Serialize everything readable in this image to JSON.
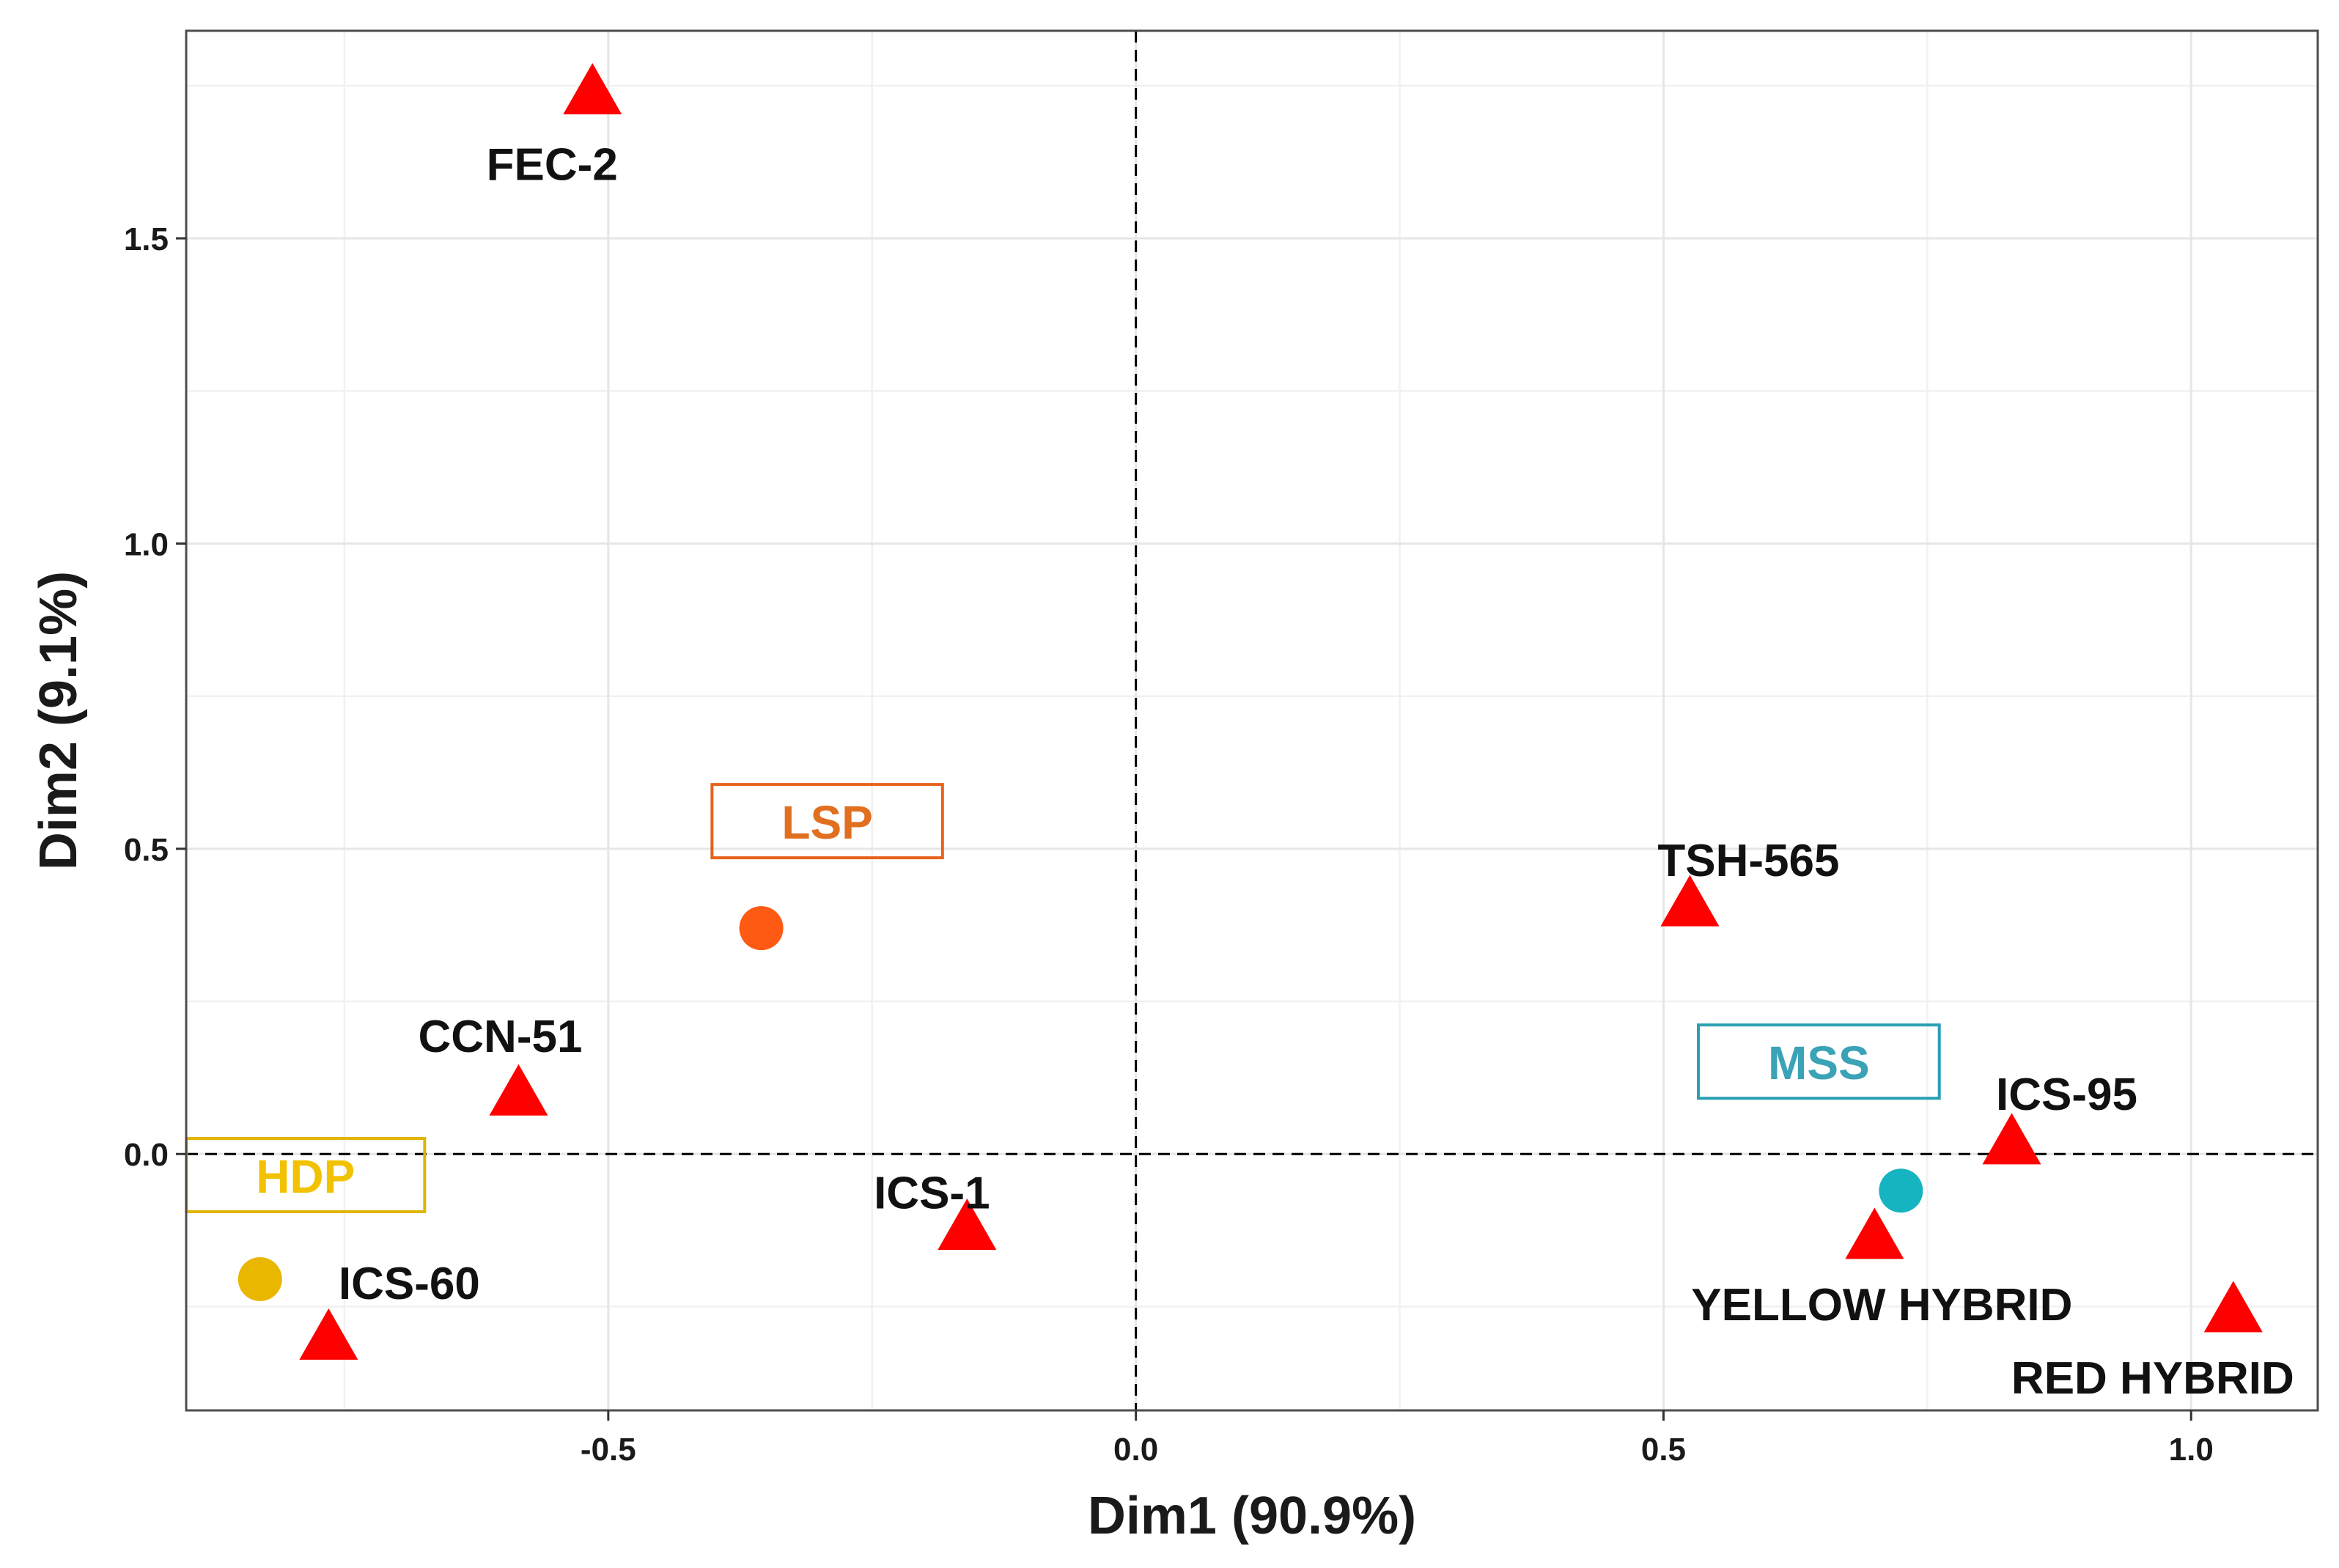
{
  "chart_data": {
    "type": "scatter",
    "title": "",
    "xlabel": "Dim1 (90.9%)",
    "ylabel": "Dim2 (9.1%)",
    "xlim": [
      -0.9,
      1.12
    ],
    "ylim": [
      -0.42,
      1.84
    ],
    "xticks": [
      -0.5,
      0.0,
      0.5,
      1.0
    ],
    "xtick_labels": [
      "-0.5",
      "0.0",
      "0.5",
      "1.0"
    ],
    "yticks": [
      0.0,
      0.5,
      1.0,
      1.5
    ],
    "ytick_labels": [
      "0.0",
      "0.5",
      "1.0",
      "1.5"
    ],
    "grid": true,
    "reference_lines": {
      "x": 0,
      "y": 0,
      "style": "dashed"
    },
    "marker_color": "#ff0000",
    "label_color": "#111111",
    "points": [
      {
        "name": "FEC-2",
        "x": -0.515,
        "y": 1.735
      },
      {
        "name": "TSH-565",
        "x": 0.525,
        "y": 0.405
      },
      {
        "name": "CCN-51",
        "x": -0.585,
        "y": 0.095
      },
      {
        "name": "ICS-95",
        "x": 0.83,
        "y": 0.015
      },
      {
        "name": "ICS-1",
        "x": -0.16,
        "y": -0.125
      },
      {
        "name": "YELLOW HYBRID",
        "x": 0.7,
        "y": -0.14
      },
      {
        "name": "ICS-60",
        "x": -0.765,
        "y": -0.305
      },
      {
        "name": "RED HYBRID",
        "x": 1.04,
        "y": -0.26
      }
    ],
    "groups": [
      {
        "name": "LSP",
        "x": -0.355,
        "y": 0.37,
        "color": "#ff5a14",
        "label_color": "#e07020",
        "box_color": "#e6631c"
      },
      {
        "name": "MSS",
        "x": 0.725,
        "y": -0.06,
        "color": "#16b3c1",
        "label_color": "#3aa3b5",
        "box_color": "#2aa0b3"
      },
      {
        "name": "HDP",
        "x": -0.83,
        "y": -0.205,
        "color": "#e9b600",
        "label_color": "#f2c200",
        "box_color": "#e0b400"
      }
    ]
  }
}
